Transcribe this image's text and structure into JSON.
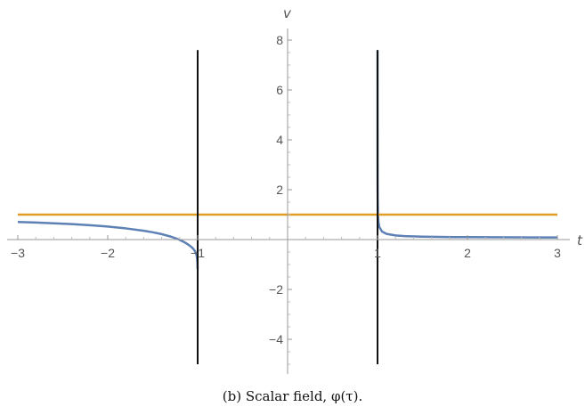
{
  "caption": "(b) Scalar field, φ(τ).",
  "chart_data": {
    "type": "line",
    "title": "",
    "xlabel": "t",
    "ylabel": "v",
    "xlim": [
      -3,
      3
    ],
    "ylim": [
      -5,
      8
    ],
    "x_ticks": [
      -3,
      -2,
      -1,
      1,
      2,
      3
    ],
    "x_tick_labels": [
      "−3",
      "−2",
      "−1",
      "1",
      "2",
      "3"
    ],
    "y_ticks": [
      -4,
      -2,
      2,
      4,
      6,
      8
    ],
    "y_tick_labels": [
      "−4",
      "−2",
      "2",
      "4",
      "6",
      "8"
    ],
    "grid": false,
    "legend": "none",
    "series": [
      {
        "color": "#5e81b5",
        "style": "solid",
        "x": [
          -3,
          -2.8,
          -2.6,
          -2.4,
          -2.2,
          -2,
          -1.8,
          -1.6,
          -1.5,
          -1.4,
          -1.3,
          -1.25,
          -1.2,
          -1.15,
          -1.1,
          -1.07,
          -1.05,
          -1.03,
          -1.02,
          -1.015,
          -1.01,
          -1.007,
          -1.005,
          -1.003,
          -1.002,
          -1.0015,
          -1.001
        ],
        "y": [
          0.707,
          0.683,
          0.654,
          0.62,
          0.577,
          0.522,
          0.449,
          0.354,
          0.293,
          0.218,
          0.12,
          0.058,
          -0.014,
          -0.102,
          -0.213,
          -0.297,
          -0.366,
          -0.463,
          -0.54,
          -0.593,
          -0.667,
          -0.741,
          -0.808,
          -0.921,
          -1.021,
          -1.089,
          -1.185
        ]
      },
      {
        "color": "#5e81b5",
        "style": "solid",
        "x": [
          1.0,
          1.0001,
          1.0005,
          1.001,
          1.002,
          1.005,
          1.01,
          1.02,
          1.05,
          1.1,
          1.2,
          1.3,
          1.5,
          1.75,
          2,
          2.25,
          2.5,
          2.75,
          3
        ],
        "y": [
          7.6,
          7.07,
          3.17,
          2.24,
          1.58,
          1.002,
          0.71,
          0.5,
          0.32,
          0.228,
          0.165,
          0.139,
          0.115,
          0.102,
          0.0962,
          0.0918,
          0.0888,
          0.0867,
          0.0855
        ]
      },
      {
        "color": "#e19c24",
        "style": "solid",
        "x": [
          -3,
          3
        ],
        "y": [
          1,
          1
        ]
      },
      {
        "color": "#111111",
        "style": "vertical",
        "x": [
          -1,
          -1
        ],
        "y": [
          -5,
          7.6
        ]
      },
      {
        "color": "#111111",
        "style": "vertical",
        "x": [
          1,
          1
        ],
        "y": [
          -5,
          7.6
        ]
      }
    ]
  }
}
